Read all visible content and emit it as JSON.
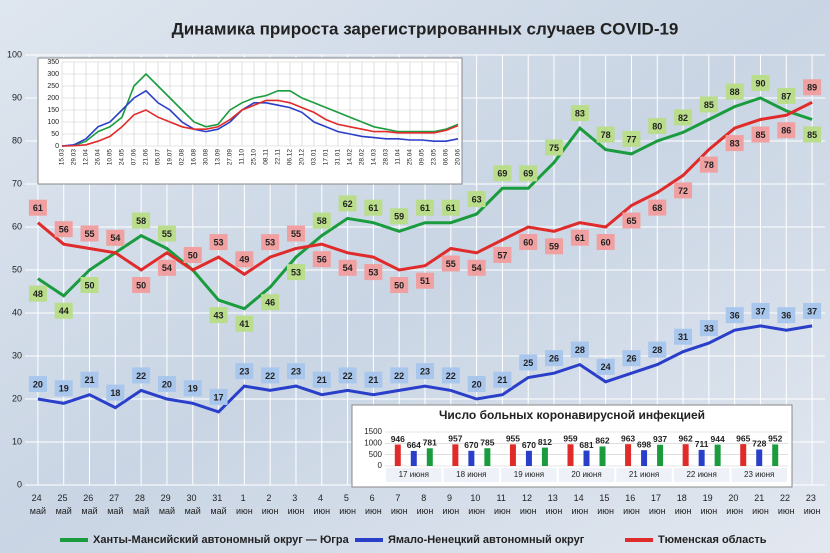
{
  "chart_data": [
    {
      "type": "line",
      "title": "Динамика прироста зарегистрированных случаев COVID-19",
      "categories": [
        "24 май",
        "25 май",
        "26 май",
        "27 май",
        "28 май",
        "29 май",
        "30 май",
        "31 май",
        "1 июн",
        "2 июн",
        "3 июн",
        "4 июн",
        "5 июн",
        "6 июн",
        "7 июн",
        "8 июн",
        "9 июн",
        "10 июн",
        "11 июн",
        "12 июн",
        "13 июн",
        "14 июн",
        "15 июн",
        "16 июн",
        "17 июн",
        "18 июн",
        "19 июн",
        "20 июн",
        "21 июн",
        "22 июн",
        "23 июн"
      ],
      "series": [
        {
          "name": "Ханты-Мансийский автономный округ — Югра",
          "color": "#1a9c3e",
          "values": [
            48,
            44,
            50,
            54,
            58,
            55,
            50,
            43,
            41,
            46,
            53,
            58,
            62,
            61,
            59,
            61,
            61,
            63,
            69,
            69,
            75,
            83,
            78,
            77,
            80,
            82,
            85,
            88,
            90,
            87,
            85
          ]
        },
        {
          "name": "Ямало-Ненецкий автономный округ",
          "color": "#2a3fc9",
          "values": [
            20,
            19,
            21,
            18,
            22,
            20,
            19,
            17,
            23,
            22,
            23,
            21,
            22,
            21,
            22,
            23,
            22,
            20,
            21,
            25,
            26,
            28,
            24,
            26,
            28,
            31,
            33,
            36,
            37,
            36,
            37
          ]
        },
        {
          "name": "Тюменская область",
          "color": "#e02b2b",
          "values": [
            61,
            56,
            55,
            54,
            50,
            54,
            50,
            53,
            49,
            53,
            55,
            56,
            54,
            53,
            50,
            51,
            55,
            54,
            57,
            60,
            59,
            61,
            60,
            65,
            68,
            72,
            78,
            83,
            85,
            86,
            89
          ]
        }
      ],
      "ylim": [
        0,
        100
      ],
      "yticks": [
        0,
        10,
        20,
        30,
        40,
        50,
        60,
        70,
        80,
        90,
        100
      ],
      "grid": true
    },
    {
      "type": "line",
      "categories": [
        "15.03",
        "29.03",
        "12.04",
        "26.04",
        "10.05",
        "24.05",
        "07.06",
        "21.06",
        "05.07",
        "19.07",
        "02.08",
        "16.08",
        "30.08",
        "13.09",
        "27.09",
        "11.10",
        "25.10",
        "08.11",
        "22.11",
        "06.12",
        "20.12",
        "03.01",
        "17.01",
        "31.01",
        "14.02",
        "28.02",
        "14.03",
        "28.03",
        "11.04",
        "25.04",
        "09.05",
        "23.05",
        "06.06",
        "20.06"
      ],
      "series": [
        {
          "color": "#1a9c3e",
          "values": [
            0,
            2,
            20,
            60,
            80,
            120,
            250,
            300,
            250,
            200,
            150,
            100,
            80,
            90,
            150,
            180,
            200,
            210,
            230,
            230,
            200,
            180,
            160,
            140,
            120,
            100,
            80,
            70,
            60,
            60,
            60,
            60,
            70,
            90
          ]
        },
        {
          "color": "#2a3fc9",
          "values": [
            0,
            5,
            30,
            80,
            100,
            150,
            200,
            230,
            180,
            150,
            100,
            70,
            60,
            70,
            100,
            150,
            180,
            180,
            170,
            160,
            140,
            100,
            80,
            60,
            50,
            40,
            35,
            30,
            30,
            25,
            25,
            20,
            20,
            30
          ]
        },
        {
          "color": "#e02b2b",
          "values": [
            0,
            1,
            5,
            20,
            40,
            80,
            130,
            150,
            120,
            100,
            80,
            70,
            70,
            80,
            110,
            150,
            170,
            190,
            190,
            180,
            160,
            140,
            110,
            90,
            80,
            70,
            60,
            60,
            55,
            55,
            55,
            55,
            65,
            85
          ]
        }
      ],
      "ylim": [
        0,
        350
      ],
      "yticks": [
        0,
        50,
        100,
        150,
        200,
        250,
        300,
        350
      ],
      "grid": true
    },
    {
      "type": "bar",
      "title": "Число больных коронавирусной инфекцией",
      "categories": [
        "17 июня",
        "18 июня",
        "19 июня",
        "20 июня",
        "21 июня",
        "22 июня",
        "23 июня"
      ],
      "series": [
        {
          "color": "#e02b2b",
          "values": [
            946,
            957,
            955,
            959,
            963,
            962,
            965
          ]
        },
        {
          "color": "#2a3fc9",
          "values": [
            664,
            670,
            670,
            681,
            698,
            711,
            728
          ]
        },
        {
          "color": "#1a9c3e",
          "values": [
            781,
            785,
            812,
            862,
            937,
            944,
            952
          ]
        }
      ],
      "ylim": [
        0,
        1500
      ],
      "yticks": [
        0,
        500,
        1000,
        1500
      ],
      "grid": true
    }
  ]
}
